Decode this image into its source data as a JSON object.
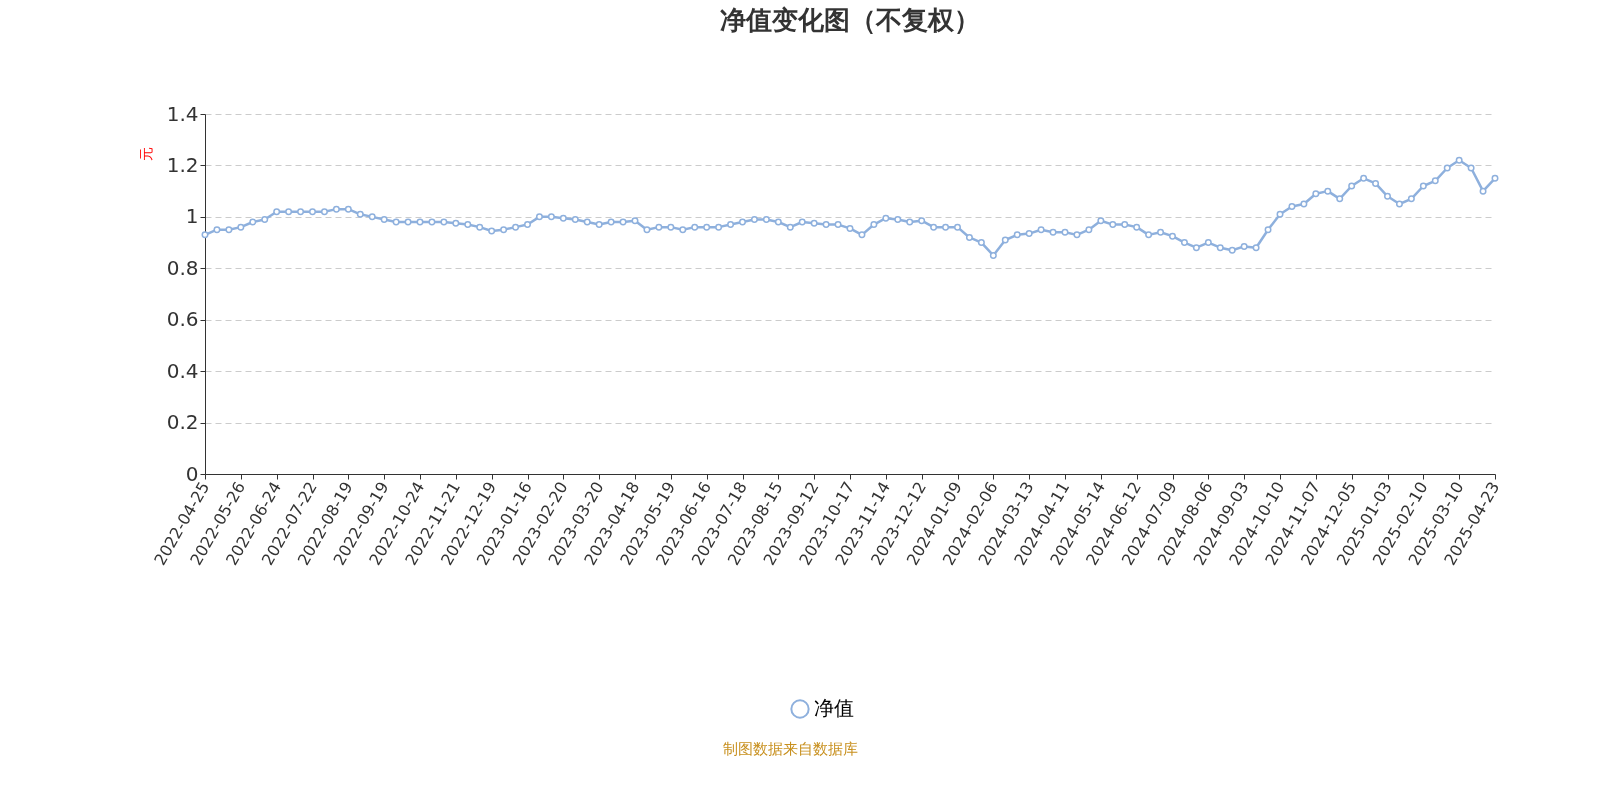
{
  "chart_data": {
    "type": "line",
    "title": "净值变化图（不复权）",
    "ylabel": "元",
    "categories": [
      "2022-04-25",
      null,
      null,
      "2022-05-26",
      null,
      null,
      "2022-06-24",
      null,
      null,
      "2022-07-22",
      null,
      null,
      "2022-08-19",
      null,
      null,
      "2022-09-19",
      null,
      null,
      "2022-10-24",
      null,
      null,
      "2022-11-21",
      null,
      null,
      "2022-12-19",
      null,
      null,
      "2023-01-16",
      null,
      null,
      "2023-02-20",
      null,
      null,
      "2023-03-20",
      null,
      null,
      "2023-04-18",
      null,
      null,
      "2023-05-19",
      null,
      null,
      "2023-06-16",
      null,
      null,
      "2023-07-18",
      null,
      null,
      "2023-08-15",
      null,
      null,
      "2023-09-12",
      null,
      null,
      "2023-10-17",
      null,
      null,
      "2023-11-14",
      null,
      null,
      "2023-12-12",
      null,
      null,
      "2024-01-09",
      null,
      null,
      "2024-02-06",
      null,
      null,
      "2024-03-13",
      null,
      null,
      "2024-04-11",
      null,
      null,
      "2024-05-14",
      null,
      null,
      "2024-06-12",
      null,
      null,
      "2024-07-09",
      null,
      null,
      "2024-08-06",
      null,
      null,
      "2024-09-03",
      null,
      null,
      "2024-10-10",
      null,
      null,
      "2024-11-07",
      null,
      null,
      "2024-12-05",
      null,
      null,
      "2025-01-03",
      null,
      null,
      "2025-02-10",
      null,
      null,
      "2025-03-10",
      null,
      null,
      "2025-04-23"
    ],
    "series": [
      {
        "name": "净值",
        "color": "#8eb0dd",
        "values": [
          0.93,
          0.95,
          0.95,
          0.96,
          0.98,
          0.99,
          1.02,
          1.02,
          1.02,
          1.02,
          1.02,
          1.03,
          1.03,
          1.01,
          1.0,
          0.99,
          0.98,
          0.98,
          0.98,
          0.98,
          0.98,
          0.975,
          0.97,
          0.96,
          0.945,
          0.95,
          0.96,
          0.97,
          1.0,
          1.0,
          0.995,
          0.99,
          0.98,
          0.97,
          0.98,
          0.98,
          0.985,
          0.95,
          0.96,
          0.96,
          0.95,
          0.96,
          0.96,
          0.96,
          0.97,
          0.98,
          0.99,
          0.99,
          0.98,
          0.96,
          0.98,
          0.975,
          0.97,
          0.97,
          0.955,
          0.93,
          0.97,
          0.995,
          0.99,
          0.98,
          0.985,
          0.96,
          0.96,
          0.96,
          0.92,
          0.9,
          0.85,
          0.91,
          0.93,
          0.935,
          0.95,
          0.94,
          0.94,
          0.93,
          0.95,
          0.985,
          0.97,
          0.97,
          0.96,
          0.93,
          0.94,
          0.925,
          0.9,
          0.88,
          0.9,
          0.88,
          0.87,
          0.885,
          0.88,
          0.95,
          1.01,
          1.04,
          1.05,
          1.09,
          1.1,
          1.07,
          1.12,
          1.15,
          1.13,
          1.08,
          1.05,
          1.07,
          1.12,
          1.14,
          1.19,
          1.22,
          1.19,
          1.1,
          1.15
        ]
      }
    ],
    "ylim": [
      0,
      1.4
    ],
    "yticks": [
      0,
      0.2,
      0.4,
      0.6,
      0.8,
      1,
      1.2,
      1.4
    ],
    "grid": "y",
    "legend": "bottom",
    "marker": "circle",
    "line_style": "solid",
    "annotations": [
      "制图数据来自数据库"
    ]
  }
}
